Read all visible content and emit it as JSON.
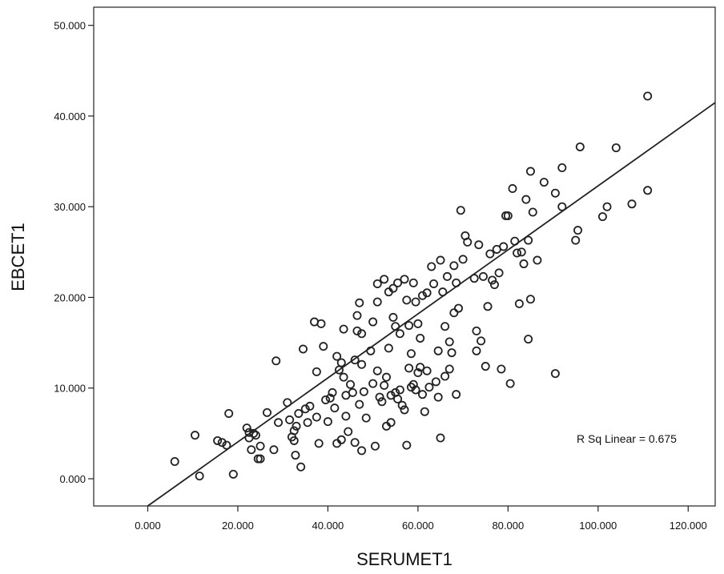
{
  "chart_data": {
    "type": "scatter",
    "title": "",
    "xlabel": "SERUMET1",
    "ylabel": "EBCET1",
    "xlim": [
      -12,
      126
    ],
    "ylim": [
      -3,
      52
    ],
    "x_ticks": [
      0,
      20,
      40,
      60,
      80,
      100,
      120
    ],
    "x_tick_labels": [
      "0.000",
      "20.000",
      "40.000",
      "60.000",
      "80.000",
      "100.000",
      "120.000"
    ],
    "y_ticks": [
      0,
      10,
      20,
      30,
      40,
      50
    ],
    "y_tick_labels": [
      "0.000",
      "10.000",
      "20.000",
      "30.000",
      "40.000",
      "50.000"
    ],
    "grid": false,
    "marker": "open-circle",
    "marker_color": "#222222",
    "fit_line": {
      "type": "linear",
      "slope": 0.353,
      "intercept": -3.0
    },
    "annotation": "R Sq Linear = 0.675",
    "series": [
      {
        "points": [
          [
            6,
            1.9
          ],
          [
            10.5,
            4.8
          ],
          [
            11.5,
            0.3
          ],
          [
            15.5,
            4.2
          ],
          [
            16.5,
            4.0
          ],
          [
            17.5,
            3.7
          ],
          [
            18,
            7.2
          ],
          [
            19,
            0.5
          ],
          [
            22,
            5.6
          ],
          [
            22.5,
            4.5
          ],
          [
            22.5,
            5.1
          ],
          [
            23,
            3.2
          ],
          [
            23.5,
            5.0
          ],
          [
            24,
            4.8
          ],
          [
            24.5,
            2.2
          ],
          [
            25,
            3.6
          ],
          [
            25,
            2.2
          ],
          [
            26.5,
            7.3
          ],
          [
            28,
            3.2
          ],
          [
            28.5,
            13.0
          ],
          [
            29,
            6.2
          ],
          [
            31,
            8.4
          ],
          [
            31.5,
            6.5
          ],
          [
            32,
            4.6
          ],
          [
            32.5,
            5.3
          ],
          [
            32.5,
            4.2
          ],
          [
            32.8,
            2.6
          ],
          [
            33,
            5.8
          ],
          [
            33.5,
            7.2
          ],
          [
            34,
            1.3
          ],
          [
            34.5,
            14.3
          ],
          [
            35,
            7.7
          ],
          [
            35.5,
            6.2
          ],
          [
            36,
            8.0
          ],
          [
            37,
            17.3
          ],
          [
            37.5,
            11.8
          ],
          [
            37.5,
            6.8
          ],
          [
            38,
            3.9
          ],
          [
            38.5,
            17.1
          ],
          [
            39,
            14.6
          ],
          [
            39.5,
            8.7
          ],
          [
            40,
            6.3
          ],
          [
            40.5,
            8.9
          ],
          [
            41,
            9.5
          ],
          [
            41.5,
            7.8
          ],
          [
            42,
            13.5
          ],
          [
            42,
            3.9
          ],
          [
            42.5,
            12.0
          ],
          [
            43,
            12.8
          ],
          [
            43,
            4.3
          ],
          [
            43.5,
            11.2
          ],
          [
            43.5,
            16.5
          ],
          [
            44,
            9.2
          ],
          [
            44,
            6.9
          ],
          [
            44.5,
            5.2
          ],
          [
            45,
            10.4
          ],
          [
            45.5,
            9.5
          ],
          [
            46,
            13.1
          ],
          [
            46,
            4.0
          ],
          [
            46.5,
            18.0
          ],
          [
            46.5,
            16.3
          ],
          [
            47,
            19.4
          ],
          [
            47,
            8.2
          ],
          [
            47.5,
            16.0
          ],
          [
            47.5,
            12.6
          ],
          [
            47.5,
            3.1
          ],
          [
            48,
            9.6
          ],
          [
            48.5,
            6.7
          ],
          [
            49.5,
            14.1
          ],
          [
            50,
            10.5
          ],
          [
            50,
            17.3
          ],
          [
            50.5,
            3.6
          ],
          [
            51,
            19.5
          ],
          [
            51,
            11.9
          ],
          [
            51,
            21.5
          ],
          [
            51.5,
            9.0
          ],
          [
            52,
            8.5
          ],
          [
            52.5,
            10.3
          ],
          [
            52.5,
            22.0
          ],
          [
            53,
            11.2
          ],
          [
            53,
            5.8
          ],
          [
            53.5,
            14.4
          ],
          [
            53.5,
            20.6
          ],
          [
            54,
            6.2
          ],
          [
            54,
            9.2
          ],
          [
            54.5,
            17.8
          ],
          [
            54.5,
            21.0
          ],
          [
            55,
            9.5
          ],
          [
            55,
            16.8
          ],
          [
            55.5,
            8.8
          ],
          [
            55.5,
            21.6
          ],
          [
            56,
            16.0
          ],
          [
            56,
            9.8
          ],
          [
            56.5,
            8.1
          ],
          [
            57,
            22.0
          ],
          [
            57,
            7.6
          ],
          [
            57.5,
            19.7
          ],
          [
            57.5,
            3.7
          ],
          [
            58,
            16.9
          ],
          [
            58,
            12.2
          ],
          [
            58.5,
            10.1
          ],
          [
            58.5,
            13.8
          ],
          [
            59,
            10.4
          ],
          [
            59,
            21.6
          ],
          [
            59.5,
            19.5
          ],
          [
            59.5,
            9.8
          ],
          [
            60,
            17.1
          ],
          [
            60,
            11.7
          ],
          [
            60.5,
            12.3
          ],
          [
            60.5,
            15.5
          ],
          [
            61,
            20.2
          ],
          [
            61,
            9.3
          ],
          [
            61.5,
            7.4
          ],
          [
            62,
            11.9
          ],
          [
            62,
            20.5
          ],
          [
            62.5,
            10.1
          ],
          [
            63,
            23.4
          ],
          [
            63.5,
            21.5
          ],
          [
            64,
            10.7
          ],
          [
            64.5,
            14.1
          ],
          [
            64.5,
            9.0
          ],
          [
            65,
            24.1
          ],
          [
            65,
            4.5
          ],
          [
            65.5,
            20.6
          ],
          [
            66,
            16.8
          ],
          [
            66,
            11.3
          ],
          [
            66.5,
            22.3
          ],
          [
            67,
            15.1
          ],
          [
            67,
            12.1
          ],
          [
            67.5,
            13.9
          ],
          [
            68,
            18.3
          ],
          [
            68,
            23.5
          ],
          [
            68.5,
            9.3
          ],
          [
            68.5,
            21.6
          ],
          [
            69,
            18.8
          ],
          [
            69.5,
            29.6
          ],
          [
            70,
            24.2
          ],
          [
            70.5,
            26.8
          ],
          [
            71,
            26.1
          ],
          [
            72.5,
            22.1
          ],
          [
            73,
            16.3
          ],
          [
            73,
            14.1
          ],
          [
            73.5,
            25.8
          ],
          [
            74,
            15.2
          ],
          [
            74.5,
            22.3
          ],
          [
            75,
            12.4
          ],
          [
            75.5,
            19.0
          ],
          [
            76,
            24.8
          ],
          [
            76.5,
            21.9
          ],
          [
            77,
            21.4
          ],
          [
            77.5,
            25.3
          ],
          [
            78,
            22.7
          ],
          [
            78.5,
            12.1
          ],
          [
            79,
            25.6
          ],
          [
            79.5,
            29.0
          ],
          [
            80,
            29.0
          ],
          [
            80.5,
            10.5
          ],
          [
            81,
            32.0
          ],
          [
            81.5,
            26.2
          ],
          [
            82,
            24.9
          ],
          [
            82.5,
            19.3
          ],
          [
            83,
            25.0
          ],
          [
            83.5,
            23.7
          ],
          [
            84,
            30.8
          ],
          [
            84.5,
            26.3
          ],
          [
            84.5,
            15.4
          ],
          [
            85,
            33.9
          ],
          [
            85,
            19.8
          ],
          [
            85.5,
            29.4
          ],
          [
            86.5,
            24.1
          ],
          [
            88,
            32.7
          ],
          [
            90.5,
            31.5
          ],
          [
            90.5,
            11.6
          ],
          [
            92,
            34.3
          ],
          [
            92,
            30.0
          ],
          [
            95,
            26.3
          ],
          [
            95.5,
            27.4
          ],
          [
            96,
            36.6
          ],
          [
            101,
            28.9
          ],
          [
            102,
            30.0
          ],
          [
            104,
            36.5
          ],
          [
            107.5,
            30.3
          ],
          [
            111,
            31.8
          ],
          [
            111,
            42.2
          ]
        ]
      }
    ]
  }
}
